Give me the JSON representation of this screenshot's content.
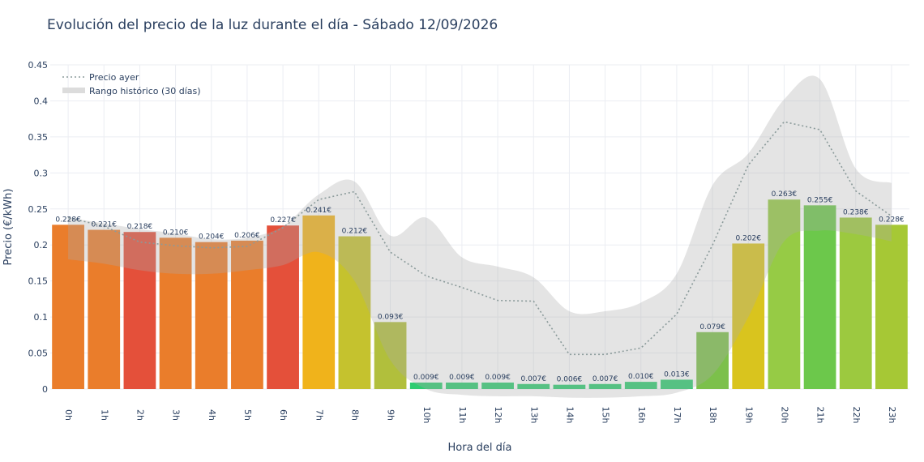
{
  "chart_data": {
    "type": "bar",
    "title": "Evolución del precio de la luz durante el día - Sábado 12/09/2026",
    "xlabel": "Hora del día",
    "ylabel": "Precio (€/kWh)",
    "ylim": [
      0,
      0.45
    ],
    "yticks": [
      "0",
      "0.05",
      "0.1",
      "0.15",
      "0.2",
      "0.25",
      "0.3",
      "0.35",
      "0.4",
      "0.45"
    ],
    "categories": [
      "0h",
      "1h",
      "2h",
      "3h",
      "4h",
      "5h",
      "6h",
      "7h",
      "8h",
      "9h",
      "10h",
      "11h",
      "12h",
      "13h",
      "14h",
      "15h",
      "16h",
      "17h",
      "18h",
      "19h",
      "20h",
      "21h",
      "22h",
      "23h"
    ],
    "values": [
      0.228,
      0.221,
      0.218,
      0.21,
      0.204,
      0.206,
      0.227,
      0.241,
      0.212,
      0.093,
      0.009,
      0.009,
      0.009,
      0.007,
      0.006,
      0.007,
      0.01,
      0.013,
      0.079,
      0.202,
      0.263,
      0.255,
      0.238,
      0.228
    ],
    "value_labels": [
      "0.228€",
      "0.221€",
      "0.218€",
      "0.210€",
      "0.204€",
      "0.206€",
      "0.227€",
      "0.241€",
      "0.212€",
      "0.093€",
      "0.009€",
      "0.009€",
      "0.009€",
      "0.007€",
      "0.006€",
      "0.007€",
      "0.010€",
      "0.013€",
      "0.079€",
      "0.202€",
      "0.263€",
      "0.255€",
      "0.238€",
      "0.228€"
    ],
    "bar_colors": [
      "#ea7d2b",
      "#ea7d2b",
      "#e4503a",
      "#ea7d2b",
      "#ea7d2b",
      "#ea7d2b",
      "#e4503a",
      "#f0b31b",
      "#c5c22e",
      "#b1bf3c",
      "#2ecc71",
      "#2ecc71",
      "#2ecc71",
      "#2ecc71",
      "#2ecc71",
      "#2ecc71",
      "#2ecc71",
      "#2ecc71",
      "#7cc04b",
      "#d9c41e",
      "#96cb45",
      "#6cc84b",
      "#9cc93f",
      "#a6c835"
    ],
    "series": [
      {
        "name": "Precio ayer",
        "style": "dotted-line",
        "color": "#8a9a9a",
        "values": [
          0.238,
          0.226,
          0.204,
          0.199,
          0.196,
          0.198,
          0.224,
          0.263,
          0.274,
          0.19,
          0.157,
          0.141,
          0.123,
          0.122,
          0.048,
          0.048,
          0.057,
          0.104,
          0.2,
          0.311,
          0.371,
          0.36,
          0.275,
          0.24
        ]
      },
      {
        "name": "Rango histórico (30 días)",
        "style": "band",
        "color": "#d9d9d9",
        "upper": [
          0.238,
          0.23,
          0.222,
          0.216,
          0.208,
          0.21,
          0.226,
          0.27,
          0.288,
          0.213,
          0.238,
          0.183,
          0.17,
          0.155,
          0.108,
          0.108,
          0.12,
          0.16,
          0.283,
          0.327,
          0.402,
          0.43,
          0.306,
          0.286
        ],
        "lower": [
          0.18,
          0.174,
          0.165,
          0.16,
          0.16,
          0.165,
          0.172,
          0.19,
          0.15,
          0.04,
          0.0,
          -0.008,
          -0.01,
          -0.01,
          -0.012,
          -0.012,
          -0.01,
          -0.005,
          0.02,
          0.1,
          0.205,
          0.22,
          0.215,
          0.205
        ]
      }
    ],
    "legend_position": "top-left",
    "grid": true
  }
}
